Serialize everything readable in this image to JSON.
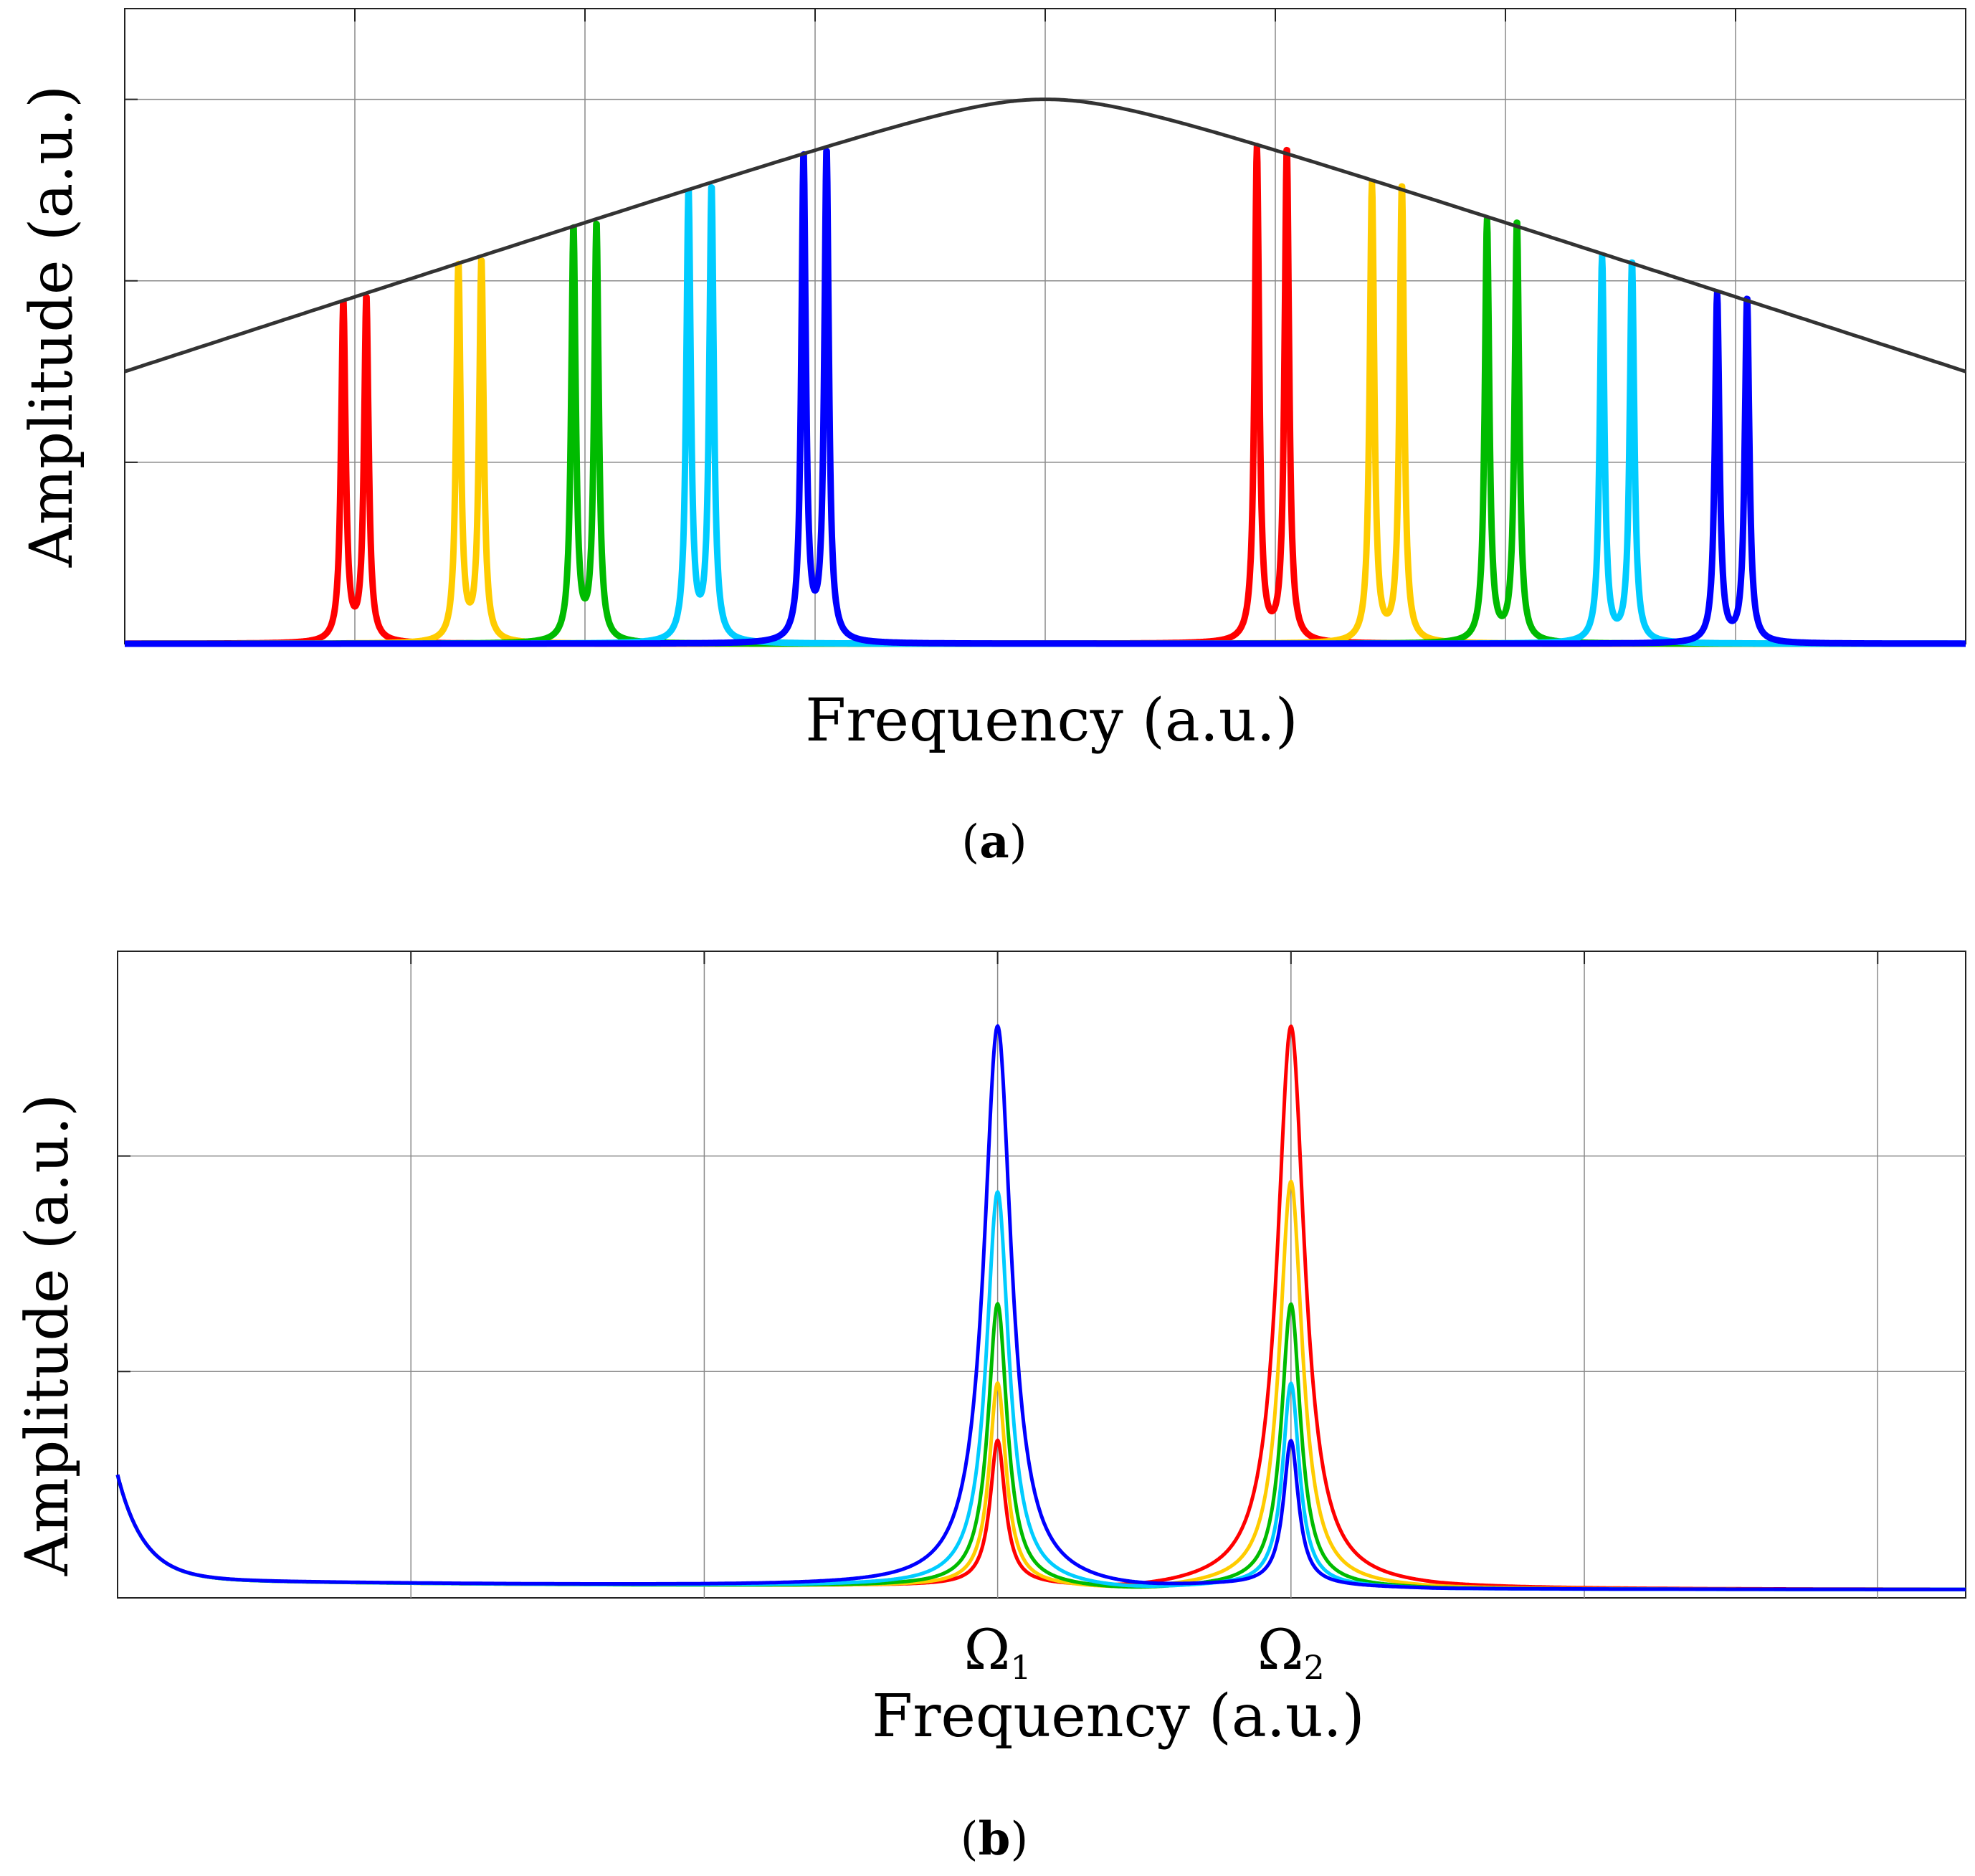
{
  "chart_data": [
    {
      "type": "line",
      "panel_label": "a",
      "xlabel": "Frequency (a.u.)",
      "ylabel": "Amplitude (a.u.)",
      "xlim": [
        0,
        8
      ],
      "ylim": [
        0,
        3.5
      ],
      "grid": true,
      "x_grid": [
        1,
        2,
        3,
        4,
        5,
        6,
        7
      ],
      "y_grid": [
        1,
        2,
        3
      ],
      "envelope": {
        "name": "envelope",
        "color": "#333333",
        "center": 4.0,
        "peak": 3.0,
        "edge_value": 1.5,
        "curvature_width": 0.4
      },
      "series": [
        {
          "name": "red",
          "color": "#ff0000",
          "peak_positions": [
            0.95,
            1.05,
            4.92,
            5.05
          ],
          "peak_amplitudes": [
            1.87,
            1.9,
            2.72,
            2.72
          ]
        },
        {
          "name": "yellow",
          "color": "#ffcc00",
          "peak_positions": [
            1.45,
            1.55,
            5.42,
            5.55
          ],
          "peak_amplitudes": [
            2.08,
            2.1,
            2.52,
            2.52
          ]
        },
        {
          "name": "green",
          "color": "#00bb00",
          "peak_positions": [
            1.95,
            2.05,
            5.92,
            6.05
          ],
          "peak_amplitudes": [
            2.28,
            2.3,
            2.32,
            2.32
          ]
        },
        {
          "name": "cyan",
          "color": "#00ccff",
          "peak_positions": [
            2.45,
            2.55,
            6.42,
            6.55
          ],
          "peak_amplitudes": [
            2.48,
            2.5,
            2.12,
            2.1
          ]
        },
        {
          "name": "blue",
          "color": "#0000ff",
          "peak_positions": [
            2.95,
            3.05,
            6.92,
            7.05
          ],
          "peak_amplitudes": [
            2.68,
            2.7,
            1.92,
            1.9
          ]
        }
      ]
    },
    {
      "type": "line",
      "panel_label": "b",
      "xlabel": "Frequency (a.u.)",
      "ylabel": "Amplitude (a.u.)",
      "xlim": [
        0,
        6.3
      ],
      "ylim": [
        -0.05,
        2.95
      ],
      "grid": true,
      "x_grid": [
        1,
        2,
        3,
        4,
        5,
        6
      ],
      "y_grid": [
        1,
        2
      ],
      "tick_labels": [
        {
          "x": 3,
          "symbol": "Ω",
          "subscript": "1"
        },
        {
          "x": 4,
          "symbol": "Ω",
          "subscript": "2"
        }
      ],
      "peak_centers": [
        3,
        4
      ],
      "series": [
        {
          "name": "red",
          "color": "#ff0000",
          "peak1": 0.67,
          "peak2": 2.6
        },
        {
          "name": "yellow",
          "color": "#ffcc00",
          "peak1": 0.94,
          "peak2": 1.88
        },
        {
          "name": "green",
          "color": "#00bb00",
          "peak1": 1.31,
          "peak2": 1.31
        },
        {
          "name": "cyan",
          "color": "#00ccff",
          "peak1": 1.83,
          "peak2": 0.94
        },
        {
          "name": "blue",
          "color": "#0000ff",
          "peak1": 2.6,
          "peak2": 0.67
        }
      ]
    }
  ]
}
